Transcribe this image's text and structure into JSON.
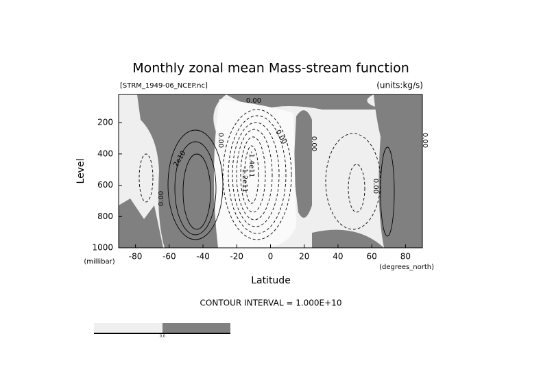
{
  "chart_data": {
    "type": "contour",
    "title": "Monthly zonal mean Mass-stream function",
    "file_label": "[STRM_1949-06_NCEP.nc]",
    "units_label": "(units:kg/s)",
    "y_label": "Level",
    "y_unit_label": "(millibar)",
    "x_label": "Latitude",
    "x_unit_label": "(degrees_north)",
    "contour_interval_label": "CONTOUR INTERVAL = 1.000E+10",
    "contour_labels": [
      "0.00",
      "0.00",
      "0.00",
      "0.00",
      "0.00",
      "2e10",
      "-1.4e11",
      "-1.2e11",
      "0.00",
      "0.00"
    ],
    "colorbar_labels": [
      "0.0"
    ],
    "xlim": [
      -90,
      90
    ],
    "xticks": [
      -80,
      -60,
      -40,
      -20,
      0,
      20,
      40,
      60,
      80
    ],
    "ylim": [
      1000,
      20
    ],
    "yticks": [
      200,
      400,
      600,
      800,
      1000
    ]
  }
}
